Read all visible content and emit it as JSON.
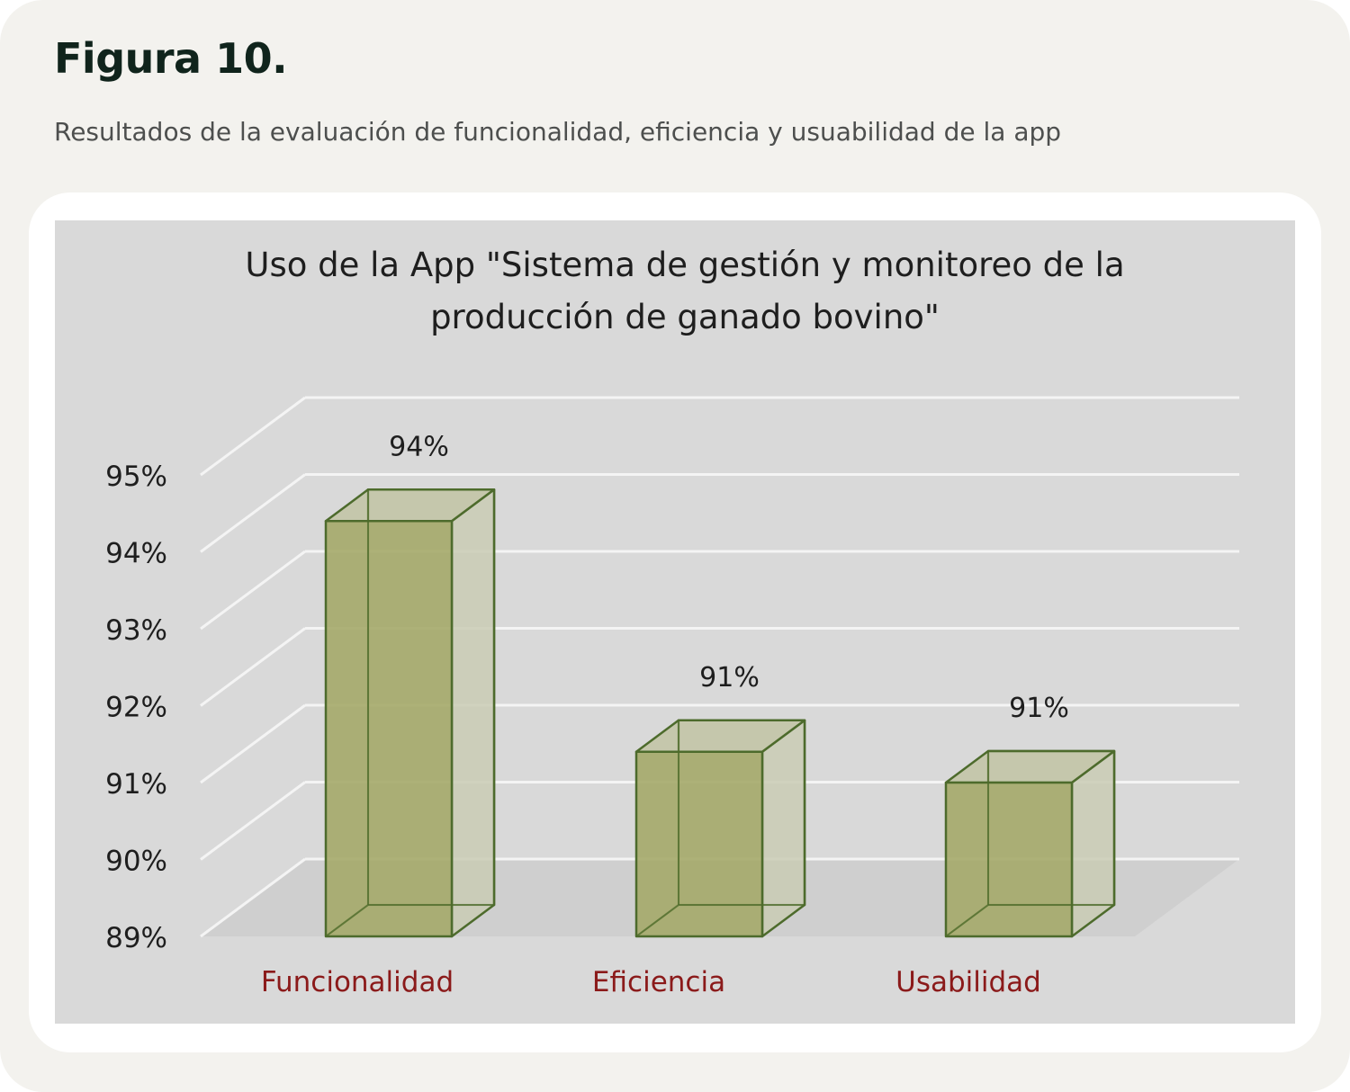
{
  "figure": {
    "label": "Figura 10.",
    "caption": "Resultados de la evaluación de funcionalidad, eficiencia y usuabilidad de la app"
  },
  "chart_data": {
    "type": "bar",
    "title_lines": [
      "Uso de la App \"Sistema de gestión y monitoreo de la",
      "producción de ganado bovino\""
    ],
    "categories": [
      "Funcionalidad",
      "Eficiencia",
      "Usabilidad"
    ],
    "values": [
      94.4,
      91.4,
      91.0
    ],
    "data_labels": [
      "94%",
      "91%",
      "91%"
    ],
    "y_ticks": [
      "89%",
      "90%",
      "91%",
      "92%",
      "93%",
      "94%",
      "95%"
    ],
    "ylim": [
      89,
      95
    ],
    "grid": true,
    "style": "3d-column",
    "colors": {
      "bar_front": "#a6aa6c",
      "bar_side": "#c9cbb4",
      "bar_top": "#bcbf98",
      "bar_edge": "#4d6b2c",
      "category_label": "#8b1a1a",
      "gridline": "#f4f4f4",
      "plot_background": "#d9d9d9",
      "floor": "#cfcfcf"
    }
  }
}
